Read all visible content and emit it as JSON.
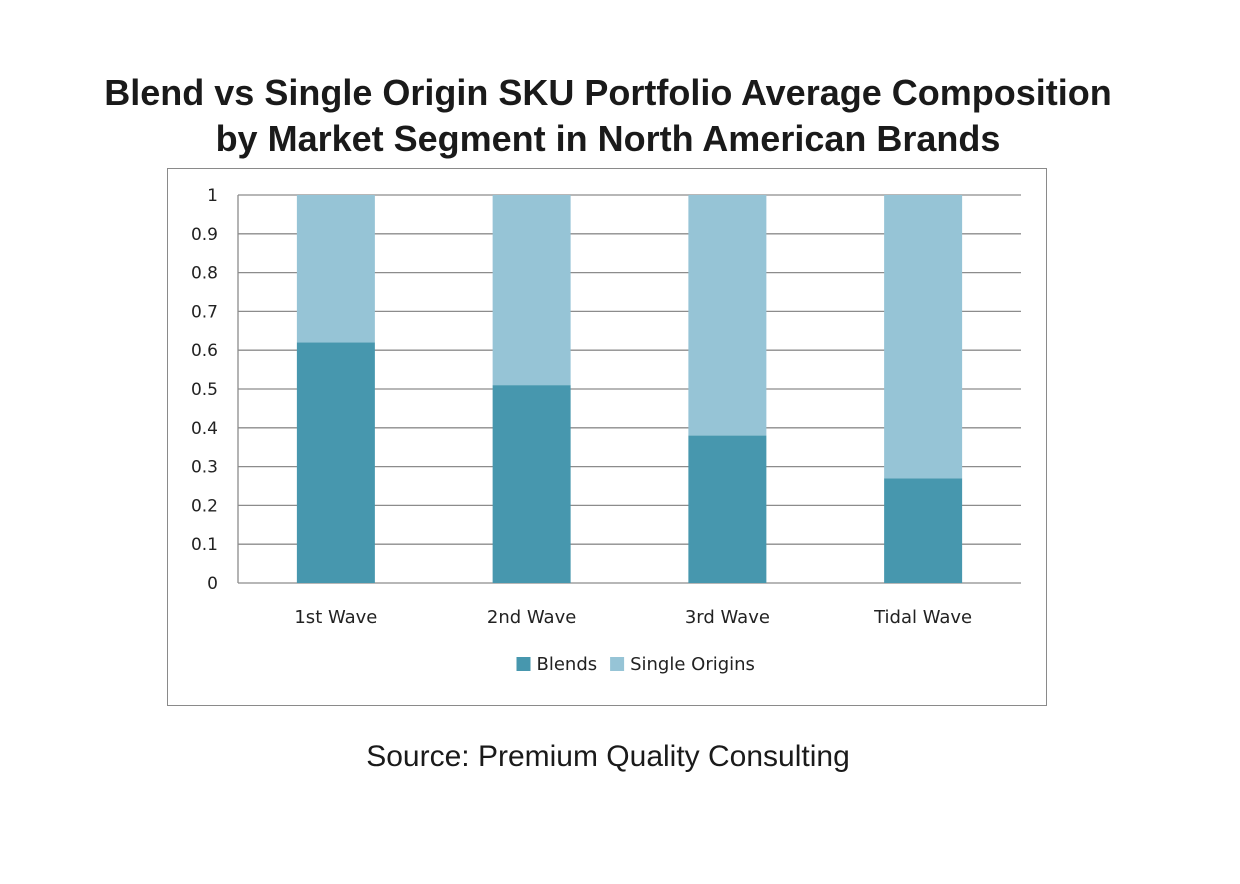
{
  "title_lines": [
    "Blend vs Single Origin SKU Portfolio Average Composition",
    "by Market Segment in North American Brands"
  ],
  "source": "Source: Premium Quality Consulting",
  "colors": {
    "blends": "#4797ae",
    "single_origins": "#96c4d6",
    "gridline": "#8c8c8c"
  },
  "chart_data": {
    "type": "bar",
    "stacked": true,
    "categories": [
      "1st Wave",
      "2nd Wave",
      "3rd Wave",
      "Tidal Wave"
    ],
    "series": [
      {
        "name": "Blends",
        "values": [
          0.62,
          0.51,
          0.38,
          0.27
        ]
      },
      {
        "name": "Single Origins",
        "values": [
          0.38,
          0.49,
          0.62,
          0.73
        ]
      }
    ],
    "title": "Blend vs Single Origin SKU Portfolio Average Composition by Market Segment in North American Brands",
    "xlabel": "",
    "ylabel": "",
    "ylim": [
      0,
      1
    ],
    "yticks": [
      "0",
      "0.1",
      "0.2",
      "0.3",
      "0.4",
      "0.5",
      "0.6",
      "0.7",
      "0.8",
      "0.9",
      "1"
    ],
    "grid": true,
    "legend": "bottom"
  }
}
